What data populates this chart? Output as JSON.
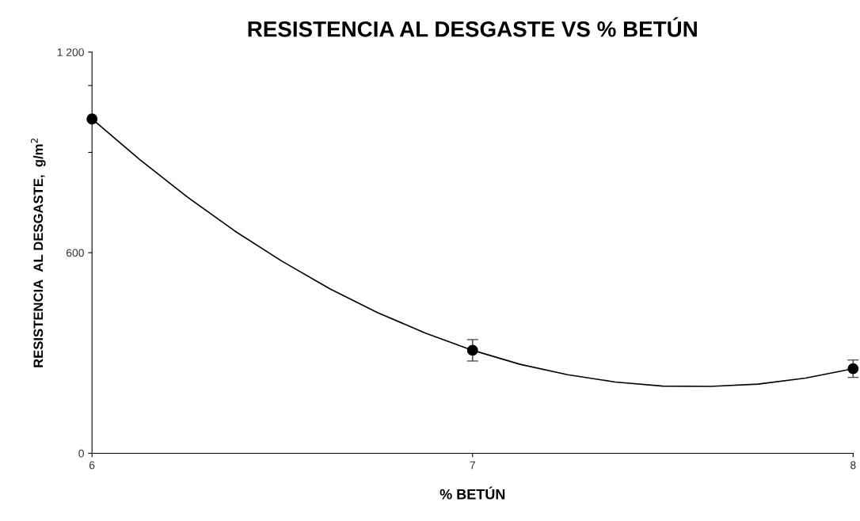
{
  "chart_data": {
    "type": "scatter",
    "title": "RESISTENCIA AL DESGASTE VS % BETÚN",
    "xlabel": "% BETÚN",
    "ylabel": "RESISTENCIA  AL DESGASTE,  g/m$^{2}$",
    "xlim": [
      6,
      8
    ],
    "xticks": [
      6,
      7,
      8
    ],
    "ylim": [
      0,
      1200
    ],
    "yticks": [
      0,
      {
        "value": 600,
        "label": "600"
      },
      {
        "value": 900,
        "label": null
      },
      {
        "value": 1100,
        "label": null
      },
      {
        "value": 1200,
        "label": "1 200"
      }
    ],
    "grid": false,
    "legend": false,
    "marker": "circle",
    "series": [
      {
        "color": "#000000",
        "x": [
          6,
          7,
          8
        ],
        "values": [
          1000,
          308,
          253
        ],
        "errors": [
          null,
          32,
          26
        ]
      },
      {
        "type": "line",
        "color": "#000000",
        "marker": "none",
        "x": [
          6,
          6.125,
          6.25,
          6.375,
          6.5,
          6.625,
          6.75,
          6.875,
          7,
          7.125,
          7.25,
          7.375,
          7.5,
          7.625,
          7.75,
          7.875,
          8
        ],
        "values": [
          1000,
          879,
          767,
          665,
          574,
          492,
          421,
          360,
          308,
          266,
          235,
          213,
          201,
          200,
          207,
          225,
          253
        ]
      }
    ]
  }
}
